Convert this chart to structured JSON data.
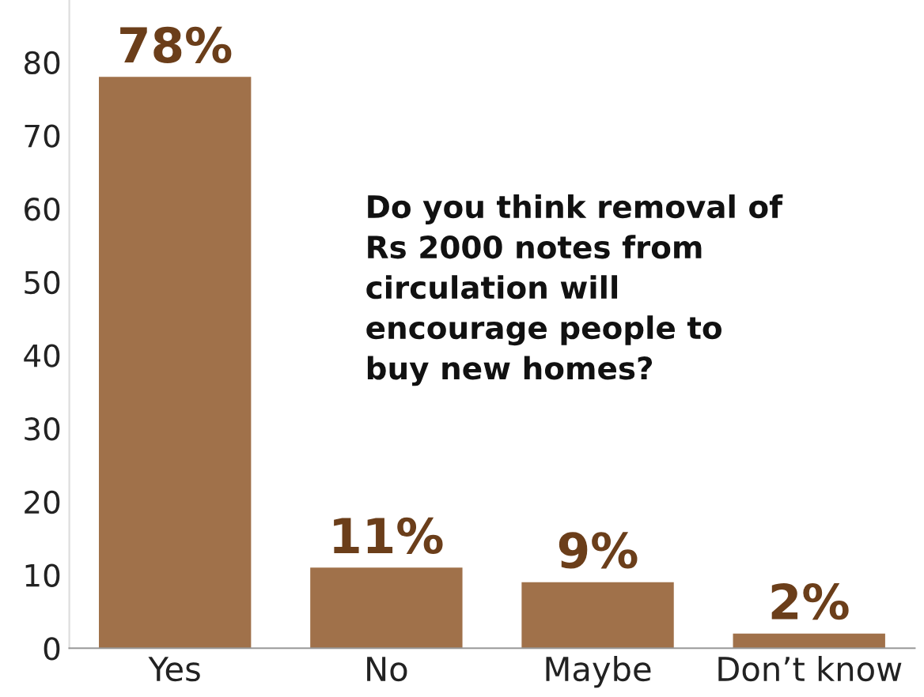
{
  "chart_data": {
    "type": "bar",
    "title": "Do you think removal of\nRs 2000 notes from\ncirculation will\nencourage people to\nbuy new homes?",
    "categories": [
      "Yes",
      "No",
      "Maybe",
      "Don’t know"
    ],
    "values": [
      78,
      11,
      9,
      2
    ],
    "value_labels": [
      "78%",
      "11%",
      "9%",
      "2%"
    ],
    "color": "#a0714a",
    "ylim": [
      0,
      88.5
    ],
    "yticks": [
      0,
      10,
      20,
      30,
      40,
      50,
      60,
      70,
      80
    ],
    "grid": false,
    "legend": false
  }
}
